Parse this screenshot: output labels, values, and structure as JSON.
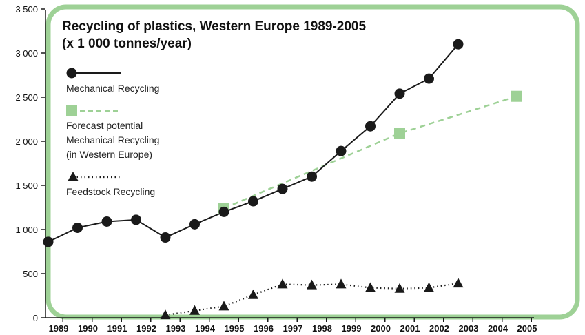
{
  "chart_data": {
    "type": "line",
    "title": "Recycling of plastics, Western Europe 1989-2005",
    "subtitle": "(x 1 000 tonnes/year)",
    "xlabel": "",
    "ylabel": "",
    "ylim": [
      0,
      3500
    ],
    "y_ticks": [
      "0",
      "500",
      "1 000",
      "1 500",
      "2 000",
      "2 500",
      "3 000",
      "3 500"
    ],
    "y_tick_values": [
      0,
      500,
      1000,
      1500,
      2000,
      2500,
      3000,
      3500
    ],
    "x_ticks": [
      "1989",
      "1990",
      "1991",
      "1992",
      "1993",
      "1994",
      "1995",
      "1996",
      "1997",
      "1998",
      "1999",
      "2000",
      "2001",
      "2002",
      "2003",
      "2004",
      "2005"
    ],
    "grid": false,
    "legend_position": "top-left",
    "series": [
      {
        "name": "Mechanical Recycling",
        "style": "solid line, circle markers",
        "color": "#1a1a1a",
        "x": [
          1989,
          1990,
          1991,
          1992,
          1993,
          1994,
          1995,
          1996,
          1997,
          1998,
          1999,
          2000,
          2001,
          2002,
          2003
        ],
        "values": [
          860,
          1020,
          1090,
          1110,
          910,
          1060,
          1200,
          1320,
          1460,
          1600,
          1890,
          2170,
          2540,
          2710,
          3100
        ]
      },
      {
        "name": "Forecast potential Mechanical Recycling (in Western Europe)",
        "name_lines": [
          "Forecast potential",
          "Mechanical Recycling",
          "(in Western Europe)"
        ],
        "style": "dashed line, square markers",
        "color": "#9ed196",
        "x": [
          1995,
          2001,
          2005
        ],
        "values": [
          1240,
          2090,
          2510
        ]
      },
      {
        "name": "Feedstock Recycling",
        "style": "dotted line, triangle markers",
        "color": "#1a1a1a",
        "x": [
          1993,
          1994,
          1995,
          1996,
          1997,
          1998,
          1999,
          2000,
          2001,
          2002,
          2003
        ],
        "values": [
          30,
          80,
          130,
          260,
          380,
          370,
          380,
          340,
          330,
          340,
          390
        ]
      }
    ]
  },
  "colors": {
    "frame": "#9ed196",
    "axis": "#1a1a1a",
    "text": "#111111"
  }
}
